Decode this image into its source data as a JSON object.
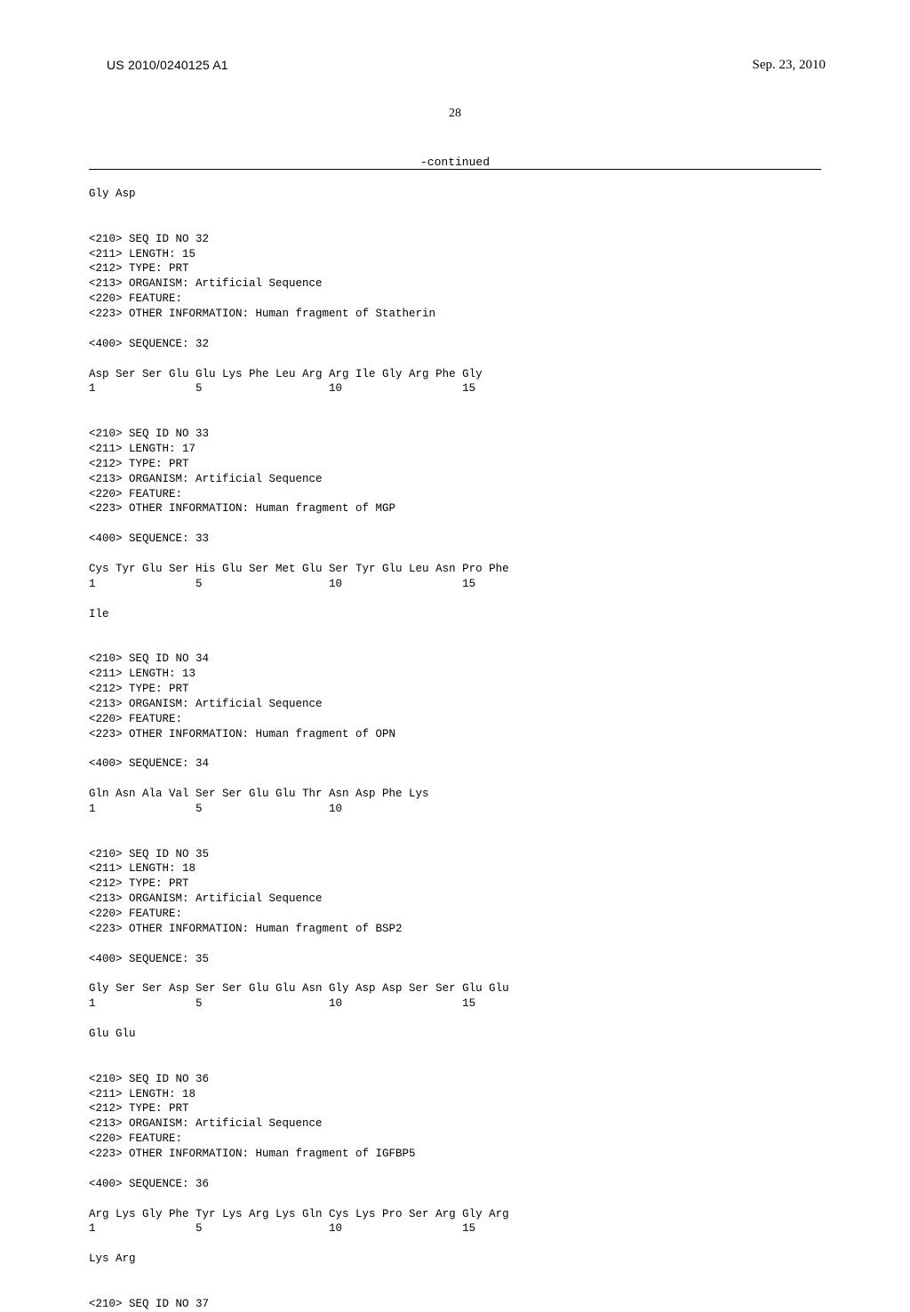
{
  "document": {
    "publication_number": "US 2010/0240125 A1",
    "publication_date": "Sep. 23, 2010",
    "page_number": "28",
    "continued_label": "-continued",
    "background_color": "#ffffff",
    "text_color": "#000000",
    "rule_color": "#000000",
    "header_font": "Arial",
    "header_fontsize": 14,
    "body_font": "Courier New",
    "body_fontsize": 12.5,
    "pagenum_font": "Times New Roman",
    "pagenum_fontsize": 14
  },
  "leading_residues": "Gly Asp",
  "entries": [
    {
      "header": [
        "<210> SEQ ID NO 32",
        "<211> LENGTH: 15",
        "<212> TYPE: PRT",
        "<213> ORGANISM: Artificial Sequence",
        "<220> FEATURE:",
        "<223> OTHER INFORMATION: Human fragment of Statherin"
      ],
      "seq_tag": "<400> SEQUENCE: 32",
      "residues": "Asp Ser Ser Glu Glu Lys Phe Leu Arg Arg Ile Gly Arg Phe Gly",
      "numbers": "1               5                   10                  15",
      "tail": ""
    },
    {
      "header": [
        "<210> SEQ ID NO 33",
        "<211> LENGTH: 17",
        "<212> TYPE: PRT",
        "<213> ORGANISM: Artificial Sequence",
        "<220> FEATURE:",
        "<223> OTHER INFORMATION: Human fragment of MGP"
      ],
      "seq_tag": "<400> SEQUENCE: 33",
      "residues": "Cys Tyr Glu Ser His Glu Ser Met Glu Ser Tyr Glu Leu Asn Pro Phe",
      "numbers": "1               5                   10                  15",
      "tail": "Ile"
    },
    {
      "header": [
        "<210> SEQ ID NO 34",
        "<211> LENGTH: 13",
        "<212> TYPE: PRT",
        "<213> ORGANISM: Artificial Sequence",
        "<220> FEATURE:",
        "<223> OTHER INFORMATION: Human fragment of OPN"
      ],
      "seq_tag": "<400> SEQUENCE: 34",
      "residues": "Gln Asn Ala Val Ser Ser Glu Glu Thr Asn Asp Phe Lys",
      "numbers": "1               5                   10",
      "tail": ""
    },
    {
      "header": [
        "<210> SEQ ID NO 35",
        "<211> LENGTH: 18",
        "<212> TYPE: PRT",
        "<213> ORGANISM: Artificial Sequence",
        "<220> FEATURE:",
        "<223> OTHER INFORMATION: Human fragment of BSP2"
      ],
      "seq_tag": "<400> SEQUENCE: 35",
      "residues": "Gly Ser Ser Asp Ser Ser Glu Glu Asn Gly Asp Asp Ser Ser Glu Glu",
      "numbers": "1               5                   10                  15",
      "tail": "Glu Glu"
    },
    {
      "header": [
        "<210> SEQ ID NO 36",
        "<211> LENGTH: 18",
        "<212> TYPE: PRT",
        "<213> ORGANISM: Artificial Sequence",
        "<220> FEATURE:",
        "<223> OTHER INFORMATION: Human fragment of IGFBP5"
      ],
      "seq_tag": "<400> SEQUENCE: 36",
      "residues": "Arg Lys Gly Phe Tyr Lys Arg Lys Gln Cys Lys Pro Ser Arg Gly Arg",
      "numbers": "1               5                   10                  15",
      "tail": "Lys Arg"
    }
  ],
  "trailing": "<210> SEQ ID NO 37"
}
